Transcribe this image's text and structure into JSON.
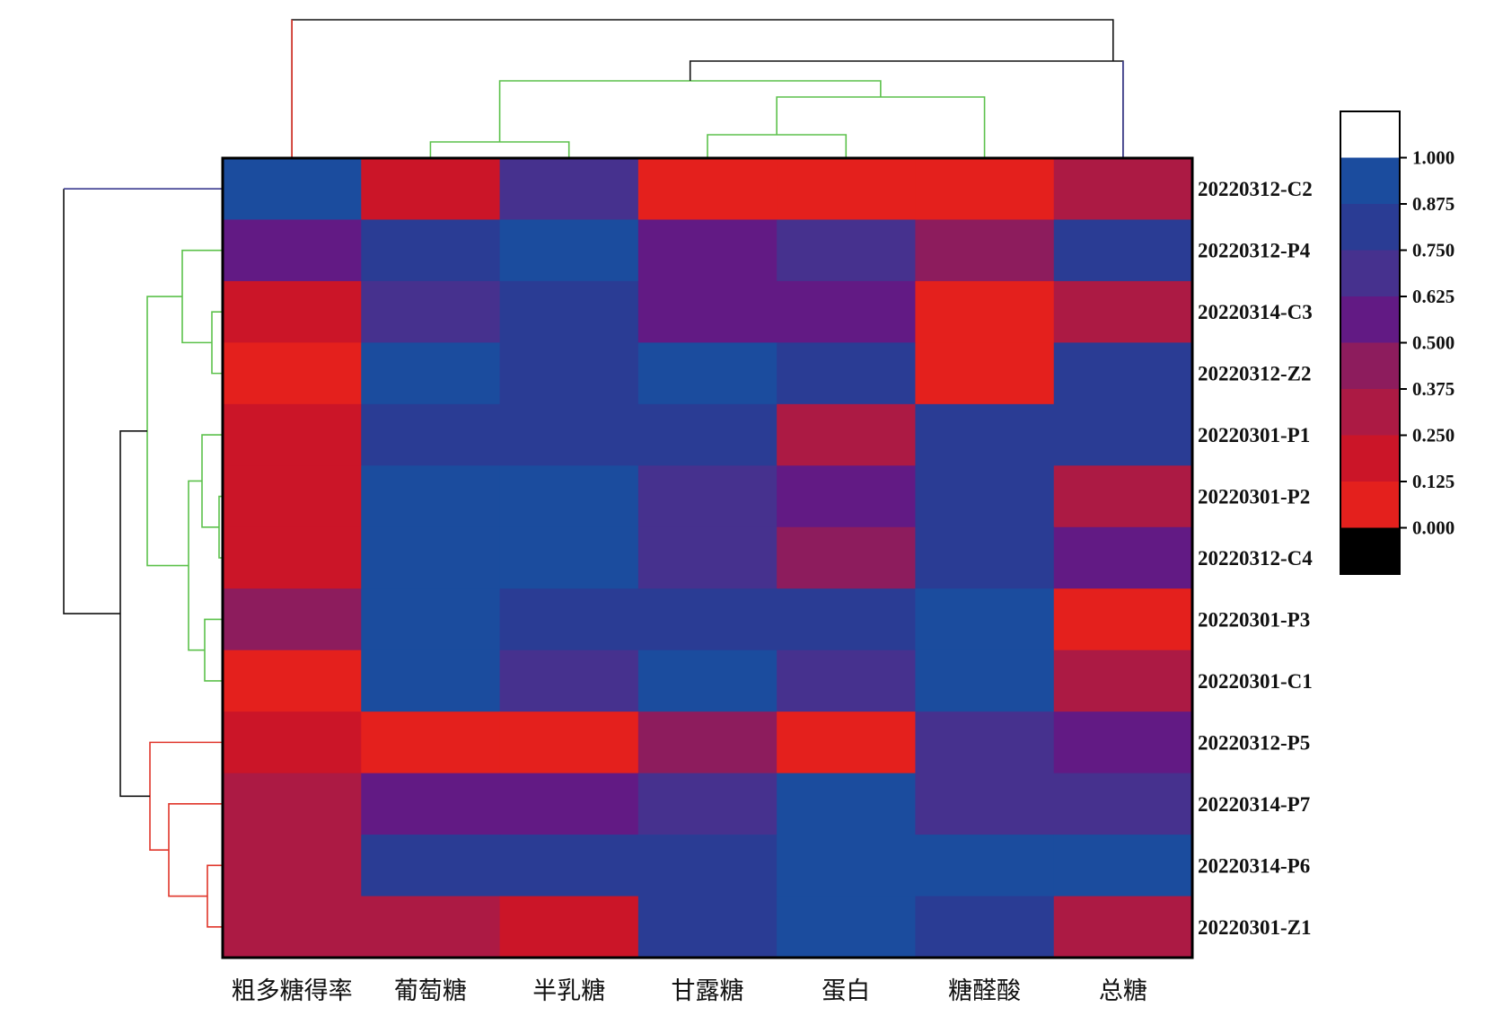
{
  "chart_data": {
    "type": "heatmap",
    "title": "",
    "columns": [
      "粗多糖得率",
      "葡萄糖",
      "半乳糖",
      "甘露糖",
      "蛋白",
      "糖醛酸",
      "总糖"
    ],
    "rows": [
      "20220312-C2",
      "20220312-P4",
      "20220314-C3",
      "20220312-Z2",
      "20220301-P1",
      "20220301-P2",
      "20220312-C4",
      "20220301-P3",
      "20220301-C1",
      "20220312-P5",
      "20220314-P7",
      "20220314-P6",
      "20220301-Z1"
    ],
    "values": [
      [
        0.9,
        0.18,
        0.66,
        0.06,
        0.06,
        0.06,
        0.29
      ],
      [
        0.56,
        0.82,
        0.9,
        0.56,
        0.72,
        0.39,
        0.82
      ],
      [
        0.18,
        0.7,
        0.82,
        0.56,
        0.56,
        0.06,
        0.29
      ],
      [
        0.06,
        0.9,
        0.82,
        0.9,
        0.82,
        0.06,
        0.76
      ],
      [
        0.18,
        0.82,
        0.82,
        0.82,
        0.36,
        0.76,
        0.76
      ],
      [
        0.18,
        0.9,
        0.9,
        0.7,
        0.56,
        0.82,
        0.29
      ],
      [
        0.18,
        0.9,
        0.9,
        0.7,
        0.39,
        0.82,
        0.56
      ],
      [
        0.39,
        0.9,
        0.82,
        0.82,
        0.82,
        0.9,
        0.06
      ],
      [
        0.06,
        0.9,
        0.7,
        0.9,
        0.7,
        0.9,
        0.29
      ],
      [
        0.18,
        0.06,
        0.06,
        0.39,
        0.06,
        0.7,
        0.56
      ],
      [
        0.29,
        0.56,
        0.56,
        0.7,
        0.9,
        0.7,
        0.7
      ],
      [
        0.29,
        0.82,
        0.82,
        0.82,
        0.9,
        0.9,
        0.9
      ],
      [
        0.29,
        0.29,
        0.18,
        0.82,
        0.9,
        0.82,
        0.29
      ]
    ],
    "color_scale": {
      "ticks": [
        "1.000",
        "0.875",
        "0.750",
        "0.625",
        "0.500",
        "0.375",
        "0.250",
        "0.125",
        "0.000"
      ],
      "stops": [
        "#ffffff",
        "#1b4c9e",
        "#2a3c94",
        "#46318e",
        "#621a84",
        "#8d1c5d",
        "#ac1a44",
        "#cb1528",
        "#e4201d",
        "#000000"
      ],
      "range": [
        0,
        1
      ]
    },
    "legend_placement": "right",
    "column_dendrogram": "top",
    "row_dendrogram": "left",
    "dendrogram_colors": {
      "cluster_a": "#5cc14b",
      "cluster_b": "#e0352a",
      "root": "#111111",
      "edge": "#3b3b8f"
    }
  }
}
